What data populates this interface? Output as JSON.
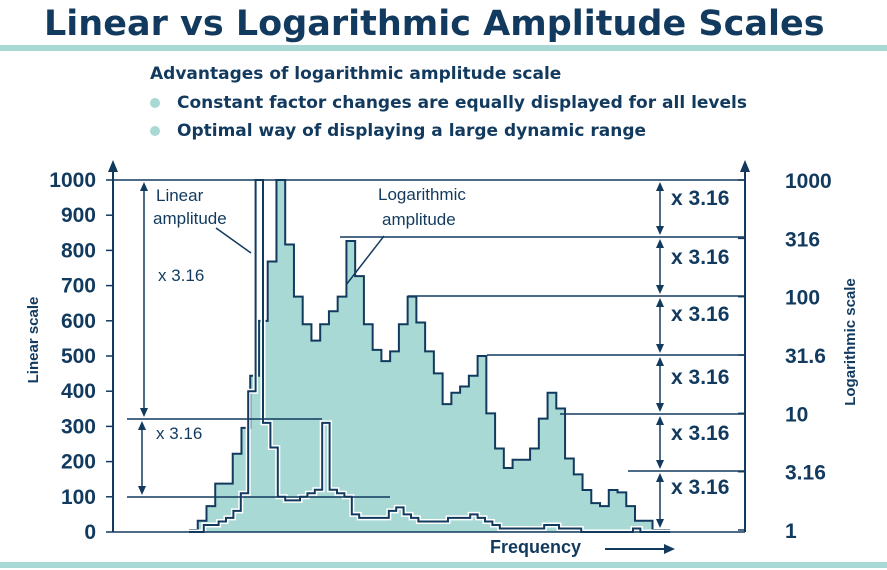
{
  "title": "Linear vs Logarithmic Amplitude Scales",
  "advantages_heading": "Advantages of logarithmic amplitude scale",
  "bullets": [
    "Constant factor changes are equally displayed for all levels",
    "Optimal way of displaying a large dynamic range"
  ],
  "colors": {
    "navy": "#123a5e",
    "teal_fill": "#a8d9d4",
    "bar": "#a8d9d4"
  },
  "chart_data": {
    "type": "area",
    "xlabel": "Frequency",
    "left_axis": {
      "label": "Linear scale",
      "ticks": [
        "0",
        "100",
        "200",
        "300",
        "400",
        "500",
        "600",
        "700",
        "800",
        "900",
        "1000"
      ]
    },
    "right_axis": {
      "label": "Logarithmic scale",
      "ticks": [
        "1",
        "3.16",
        "10",
        "31.6",
        "100",
        "316",
        "1000"
      ]
    },
    "annotations": {
      "linear_label_line1": "Linear",
      "linear_label_line2": "amplitude",
      "log_label_line1": "Logarithmic",
      "log_label_line2": "amplitude",
      "factor": "x 3.16"
    },
    "series": [
      {
        "name": "Linear amplitude",
        "kind": "outline",
        "values": [
          0,
          0,
          20,
          20,
          30,
          40,
          60,
          110,
          400,
          1000,
          310,
          240,
          100,
          90,
          90,
          100,
          110,
          120,
          310,
          120,
          110,
          100,
          50,
          40,
          40,
          40,
          40,
          60,
          70,
          50,
          40,
          30,
          30,
          30,
          30,
          40,
          40,
          40,
          50,
          40,
          30,
          20,
          10,
          10,
          10,
          10,
          10,
          10,
          20,
          20,
          10,
          10,
          10,
          0,
          0,
          0,
          0,
          0,
          0,
          0,
          10,
          0,
          0,
          0,
          0
        ]
      },
      {
        "name": "Logarithmic amplitude",
        "kind": "filled",
        "values": [
          1,
          1.2,
          1.6,
          2.5,
          2.5,
          4.5,
          7.5,
          21,
          62,
          200,
          1000,
          280,
          100,
          58,
          42,
          58,
          75,
          100,
          300,
          150,
          58,
          35,
          28,
          34,
          58,
          100,
          60,
          34,
          22,
          12,
          15,
          17,
          21,
          31,
          10,
          5,
          3.4,
          4,
          4,
          5,
          9,
          15,
          11,
          4.1,
          3,
          2.2,
          1.7,
          1.6,
          2.2,
          2.1,
          1.6,
          1.2,
          1.2,
          1,
          1
        ]
      }
    ]
  }
}
